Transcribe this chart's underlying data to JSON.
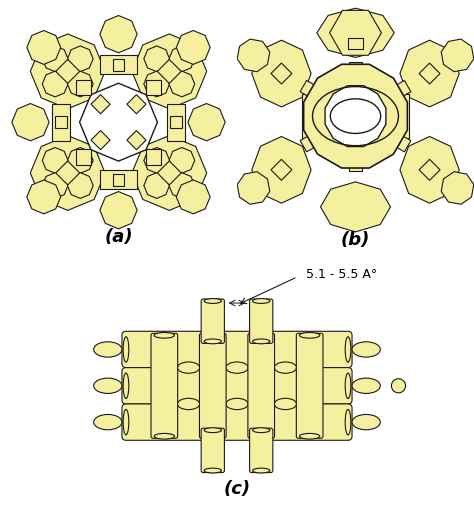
{
  "bg_color": "#ffffff",
  "face_color": "#f5f0a0",
  "edge_color": "#1a1a1a",
  "light_face": "#fdfce0",
  "label_a": "(a)",
  "label_b": "(b)",
  "label_c": "(c)",
  "annotation": "5.1 - 5.5 A°",
  "label_fontsize": 13,
  "annot_fontsize": 9
}
